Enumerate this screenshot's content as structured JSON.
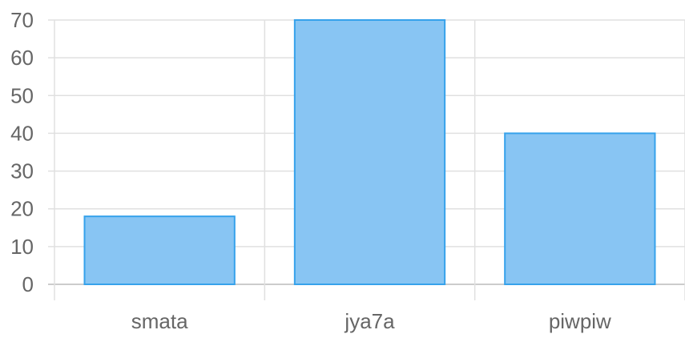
{
  "chart_data": {
    "type": "bar",
    "categories": [
      "smata",
      "jya7a",
      "piwpiw"
    ],
    "values": [
      18,
      70,
      40
    ],
    "ylim": [
      0,
      70
    ],
    "yticks": [
      0,
      10,
      20,
      30,
      40,
      50,
      60,
      70
    ],
    "grid": true,
    "legend": "none",
    "colors": {
      "bar_fill": "#88c5f3",
      "bar_stroke": "#36a2eb",
      "grid": "#e0e0e0",
      "text": "#666666"
    }
  }
}
